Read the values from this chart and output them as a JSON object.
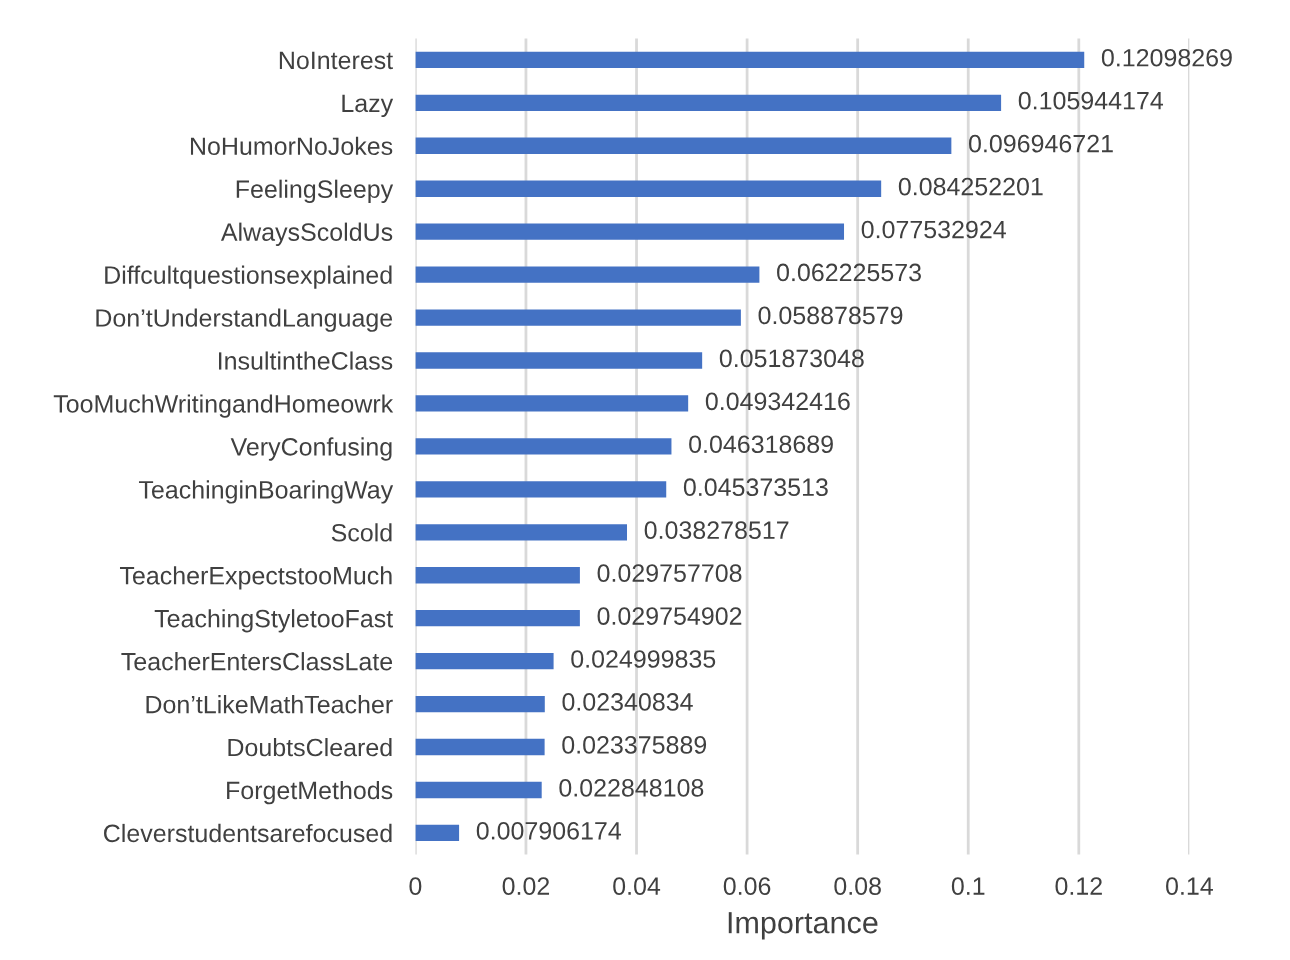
{
  "chart_data": {
    "type": "bar",
    "orientation": "horizontal",
    "xlabel": "Importance",
    "categories": [
      "NoInterest",
      "Lazy",
      "NoHumorNoJokes",
      "FeelingSleepy",
      "AlwaysScoldUs",
      "Diffcultquestionsexplained",
      "Don’tUnderstandLanguage",
      "InsultintheClass",
      "TooMuchWritingandHomeowrk",
      "VeryConfusing",
      "TeachinginBoaringWay",
      "Scold",
      "TeacherExpectstooMuch",
      "TeachingStyletooFast",
      "TeacherEntersClassLate",
      "Don’tLikeMathTeacher",
      "DoubtsCleared",
      "ForgetMethods",
      "Cleverstudentsarefocused"
    ],
    "values": [
      0.12098269,
      0.105944174,
      0.096946721,
      0.084252201,
      0.077532924,
      0.062225573,
      0.058878579,
      0.051873048,
      0.049342416,
      0.046318689,
      0.045373513,
      0.038278517,
      0.029757708,
      0.029754902,
      0.024999835,
      0.02340834,
      0.023375889,
      0.022848108,
      0.007906174
    ],
    "color": "#4472c4",
    "data_labels": true,
    "xlim": [
      0,
      0.14
    ],
    "xticks": [
      0,
      0.02,
      0.04,
      0.06,
      0.08,
      0.1,
      0.12,
      0.14
    ],
    "grid": "x",
    "legend": false
  }
}
